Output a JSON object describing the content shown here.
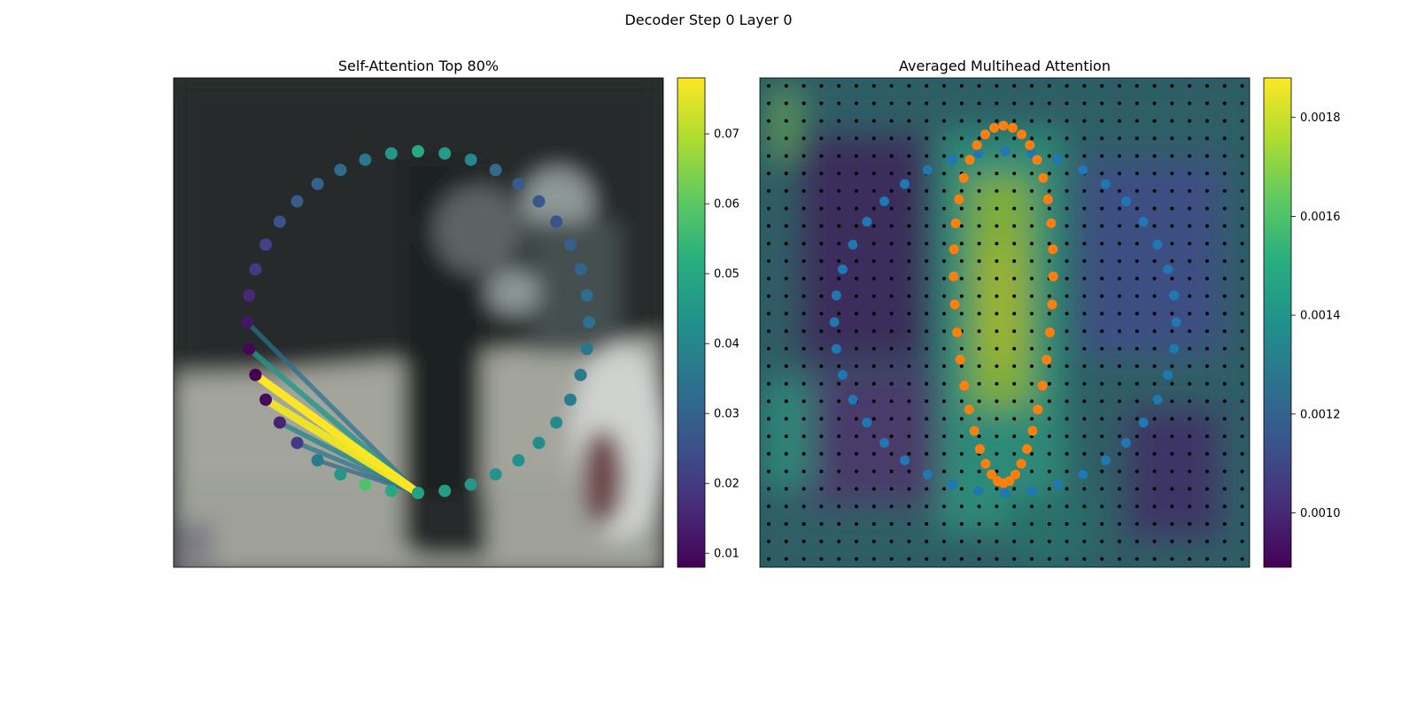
{
  "figure_title": "Decoder Step 0 Layer 0",
  "chart_data": [
    {
      "type": "scatter",
      "title": "Self-Attention Top 80%",
      "description_visible": "40 points on a circle over a blurred photo, colored by attention weight; lines from the query point to top attended points",
      "background": "blurred street photo",
      "colormap": "viridis",
      "colorbar": {
        "min": 0.008,
        "max": 0.078,
        "ticks": [
          0.01,
          0.02,
          0.03,
          0.04,
          0.05,
          0.06,
          0.07
        ],
        "tick_labels": [
          "0.01",
          "0.02",
          "0.03",
          "0.04",
          "0.05",
          "0.06",
          "0.07"
        ]
      },
      "query_point_index": 20,
      "point_values": [
        0.05,
        0.046,
        0.04,
        0.032,
        0.028,
        0.027,
        0.026,
        0.029,
        0.03,
        0.033,
        0.034,
        0.035,
        0.037,
        0.038,
        0.041,
        0.042,
        0.043,
        0.044,
        0.045,
        0.047,
        0.048,
        0.05,
        0.058,
        0.045,
        0.037,
        0.02,
        0.015,
        0.01,
        0.008,
        0.009,
        0.012,
        0.016,
        0.02,
        0.022,
        0.025,
        0.028,
        0.03,
        0.032,
        0.036,
        0.045
      ],
      "attention_lines": [
        {
          "to_index": 28,
          "value": 0.078
        },
        {
          "to_index": 27,
          "value": 0.076
        },
        {
          "to_index": 29,
          "value": 0.045
        },
        {
          "to_index": 30,
          "value": 0.034
        },
        {
          "to_index": 26,
          "value": 0.04
        },
        {
          "to_index": 25,
          "value": 0.036
        },
        {
          "to_index": 24,
          "value": 0.03
        }
      ],
      "grid": false
    },
    {
      "type": "heatmap",
      "title": "Averaged Multihead Attention",
      "colormap": "viridis",
      "colorbar": {
        "min": 0.00089,
        "max": 0.00188,
        "ticks": [
          0.001,
          0.0012,
          0.0014,
          0.0016,
          0.0018
        ],
        "tick_labels": [
          "0.0010",
          "0.0012",
          "0.0014",
          "0.0016",
          "0.0018"
        ]
      },
      "grid_points": {
        "rows": 28,
        "cols": 28,
        "color": "#000000"
      },
      "series": [
        {
          "color": "#1f77b4",
          "shape": "circle of 40 points"
        },
        {
          "color": "#ff7f0e",
          "shape": "closed contour of 40 points"
        }
      ],
      "grid": false
    }
  ]
}
